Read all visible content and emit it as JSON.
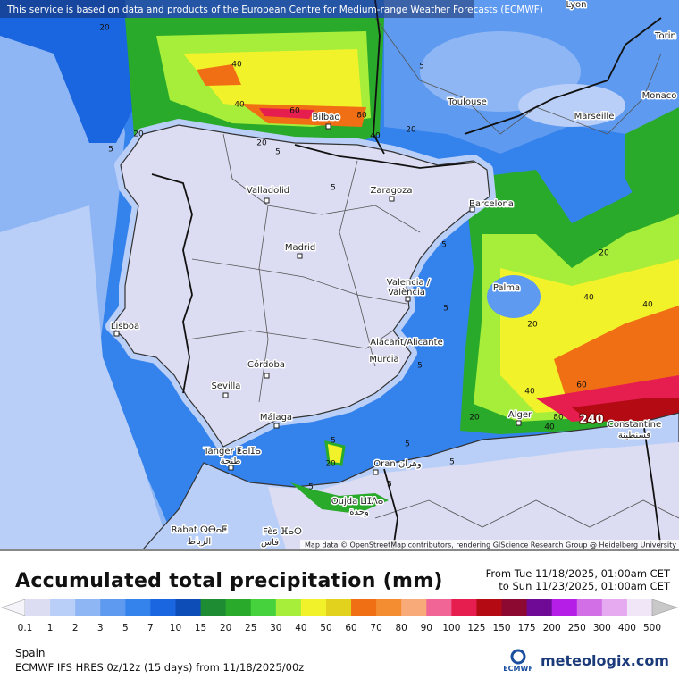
{
  "banner": "This service is based on data and products of the European Centre for Medium-range Weather Forecasts (ECMWF)",
  "map": {
    "cities": [
      "Lyon",
      "Torin",
      "Monaco",
      "Toulouse",
      "Marseille",
      "Bilbao",
      "Valladolid",
      "Zaragoza",
      "Barcelona",
      "Madrid",
      "Palma",
      "Valencia /",
      "València",
      "Lisboa",
      "Alacant/Alicante",
      "Murcia",
      "Córdoba",
      "Sevilla",
      "Málaga",
      "Alger",
      "Constantine",
      "قسنطينة",
      "Tanger ⵟⴰⵏⵊⴰ",
      "طنجة",
      "Oran وهران",
      "Oujda ⵡⵊⴷⴰ",
      "وجدة",
      "Rabat ⵕⴱⴰⵟ",
      "الرباط",
      "Fès ⴼⴰⵙ",
      "فاس"
    ],
    "contours": [
      20,
      40,
      40,
      60,
      80,
      40,
      20,
      20,
      5,
      5,
      5,
      20,
      5,
      5,
      5,
      5,
      20,
      40,
      40,
      20,
      40,
      60,
      20,
      80,
      240,
      40,
      5,
      5,
      20,
      5,
      5,
      5
    ],
    "credit": "Map data © OpenStreetMap contributors, rendering GIScience Research Group @ Heidelberg University"
  },
  "legend": {
    "title": "Accumulated total precipitation (mm)",
    "from": "From Tue 11/18/2025, 01:00am CET",
    "to": "to Sun 11/23/2025, 01:00am CET",
    "values": [
      0.1,
      1,
      2,
      3,
      5,
      7,
      10,
      15,
      20,
      25,
      30,
      40,
      50,
      60,
      70,
      80,
      90,
      100,
      125,
      150,
      175,
      200,
      250,
      300,
      400,
      500
    ],
    "colors": [
      "#dcdcf2",
      "#b9cff8",
      "#8fb6f4",
      "#5e9af0",
      "#3482ec",
      "#1a66e0",
      "#0c4db8",
      "#1e8c32",
      "#2aaa2a",
      "#46d23c",
      "#a6ee3a",
      "#f2f22a",
      "#e2d21e",
      "#f06e14",
      "#f48c32",
      "#f8aa78",
      "#f06496",
      "#e61e50",
      "#b40a14",
      "#8c0a32",
      "#6e0a96",
      "#b41ee6",
      "#d26ee6",
      "#e6aaf0",
      "#f0e6f8",
      "#c8c8c8"
    ]
  },
  "footer": {
    "region": "Spain",
    "model": "ECMWF IFS HRES 0z/12z (15 days) from  11/18/2025/00z",
    "ecmwf": "ECMWF",
    "brand": "meteologix.com"
  }
}
